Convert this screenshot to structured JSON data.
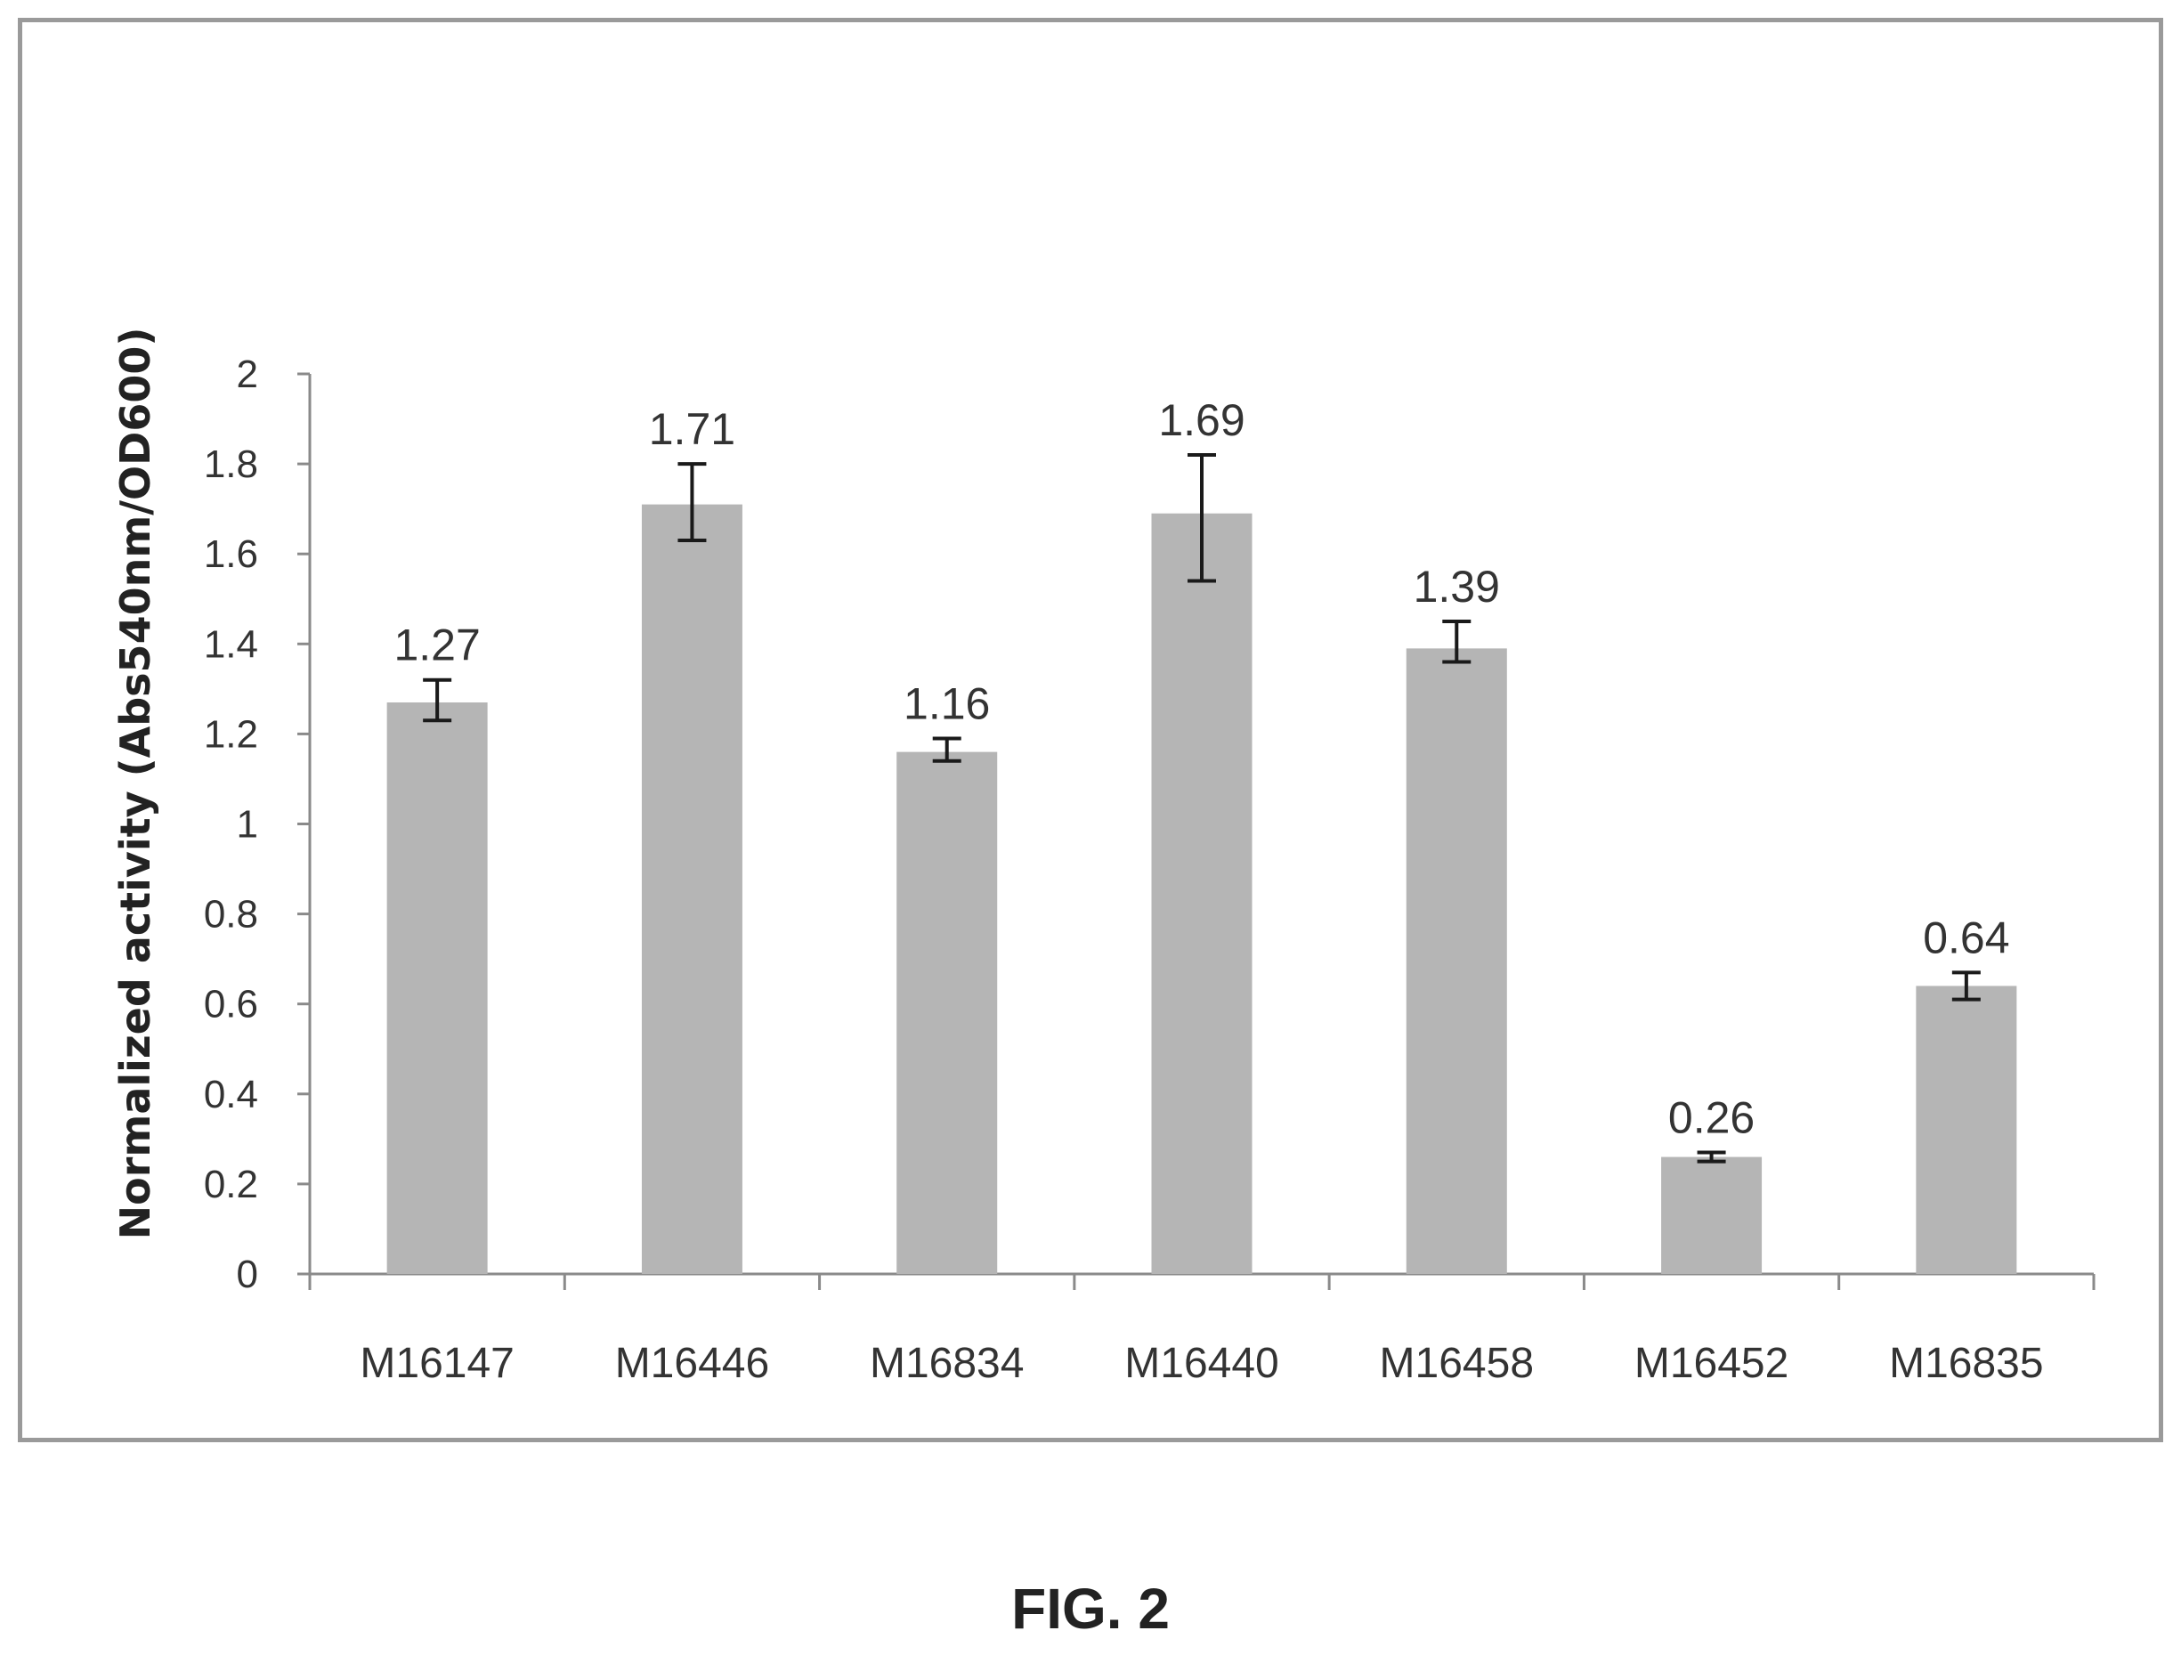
{
  "chart_data": {
    "type": "bar",
    "title": "",
    "xlabel": "",
    "ylabel": "Normalized activity (Abs540nm/OD600)",
    "categories": [
      "M16147",
      "M16446",
      "M16834",
      "M16440",
      "M16458",
      "M16452",
      "M16835"
    ],
    "values": [
      1.27,
      1.71,
      1.16,
      1.69,
      1.39,
      0.26,
      0.64
    ],
    "value_labels": [
      "1.27",
      "1.71",
      "1.16",
      "1.69",
      "1.39",
      "0.26",
      "0.64"
    ],
    "error_low": [
      1.23,
      1.63,
      1.14,
      1.54,
      1.36,
      0.25,
      0.61
    ],
    "error_high": [
      1.32,
      1.8,
      1.19,
      1.82,
      1.45,
      0.27,
      0.67
    ],
    "ylim": [
      0,
      2
    ],
    "yticks": [
      0,
      0.2,
      0.4,
      0.6,
      0.8,
      1,
      1.2,
      1.4,
      1.6,
      1.8,
      2
    ],
    "ytick_labels": [
      "0",
      "0.2",
      "0.4",
      "0.6",
      "0.8",
      "1",
      "1.2",
      "1.4",
      "1.6",
      "1.8",
      "2"
    ],
    "grid": false,
    "legend": "none",
    "bar_color": "#b5b5b5",
    "axis_color": "#8a8a8a",
    "error_bar_color": "#1a1a1a"
  },
  "caption": "FIG. 2"
}
